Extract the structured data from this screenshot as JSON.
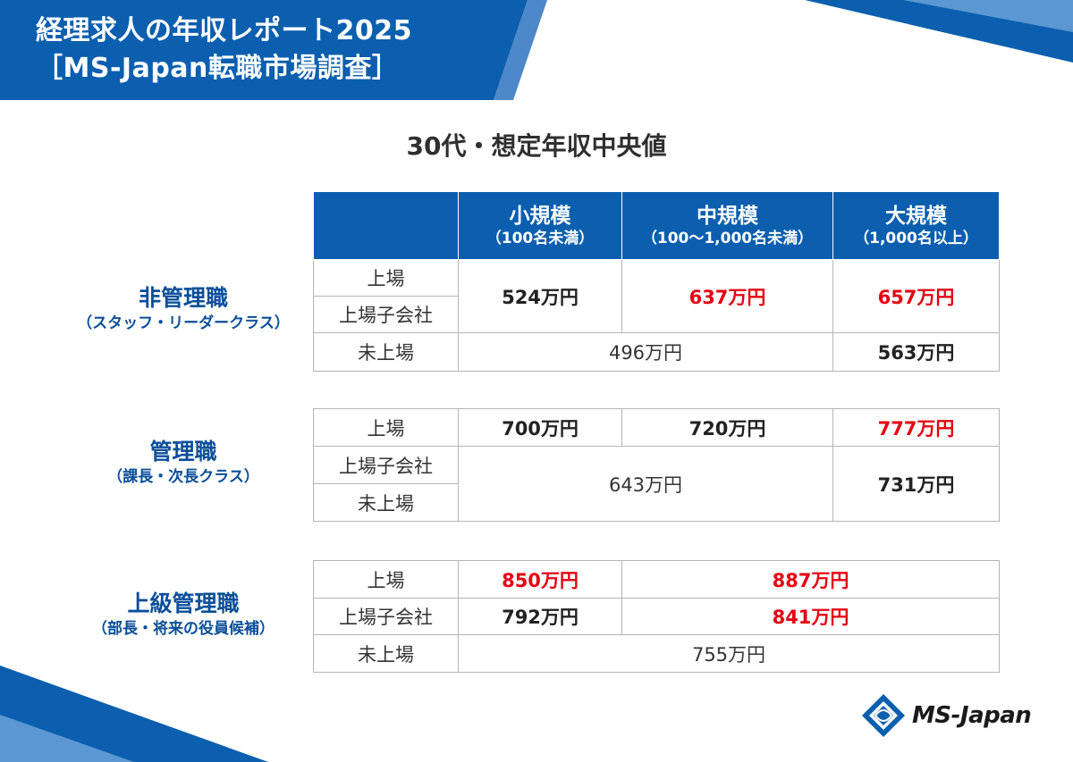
{
  "header": {
    "line1": "経理求人の年収レポート2025",
    "line2": "［MS-Japan転職市場調査］"
  },
  "subtitle": "30代・想定年収中央値",
  "columns": [
    {
      "name": "小規模",
      "sub": "（100名未満）"
    },
    {
      "name": "中規模",
      "sub": "（100～1,000名未満）"
    },
    {
      "name": "大規模",
      "sub": "（1,000名以上）"
    }
  ],
  "row_labels": {
    "listed": "上場",
    "subsidiary": "上場子会社",
    "unlisted": "未上場"
  },
  "groups": {
    "non_management": {
      "title": "非管理職",
      "sub": "（スタッフ・リーダークラス）",
      "listed_sub_small": "524万円",
      "listed_sub_mid": "637万円",
      "listed_sub_large": "657万円",
      "unlisted_small_mid": "496万円",
      "unlisted_large": "563万円"
    },
    "management": {
      "title": "管理職",
      "sub": "（課長・次長クラス）",
      "listed_small": "700万円",
      "listed_mid": "720万円",
      "listed_large": "777万円",
      "sub_unlisted_small_mid": "643万円",
      "sub_unlisted_large": "731万円"
    },
    "senior": {
      "title": "上級管理職",
      "sub": "（部長・将来の役員候補）",
      "listed_small": "850万円",
      "listed_mid_large": "887万円",
      "sub_small": "792万円",
      "sub_mid_large": "841万円",
      "unlisted_all": "755万円"
    }
  },
  "logo": {
    "text": "MS-Japan",
    "icon": "ms-japan-logo-icon"
  },
  "colors": {
    "brand_blue": "#0b5fae",
    "highlight_red": "#e60012"
  }
}
